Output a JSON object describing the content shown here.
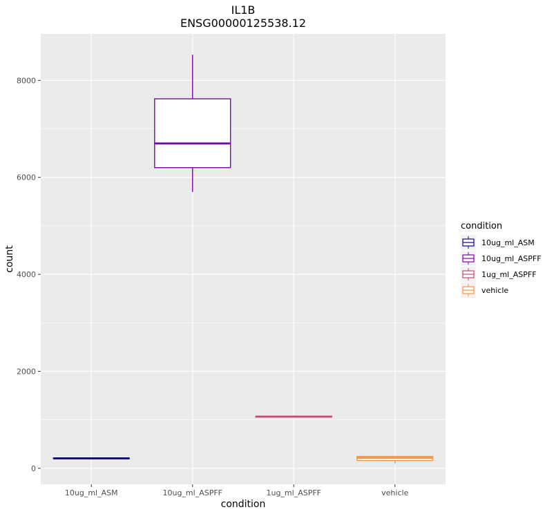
{
  "chart_data": {
    "type": "box",
    "title": "IL1B",
    "subtitle": "ENSG00000125538.12",
    "xlabel": "condition",
    "ylabel": "count",
    "ylim": [
      -330,
      8960
    ],
    "yticks": [
      0,
      2000,
      4000,
      6000,
      8000
    ],
    "grid": true,
    "legend": {
      "title": "condition",
      "placement": "right"
    },
    "categories": [
      "10ug_ml_ASM",
      "10ug_ml_ASPFF",
      "1ug_ml_ASPFF",
      "vehicle"
    ],
    "boxes": [
      {
        "name": "10ug_ml_ASM",
        "min": 195,
        "q1": 200,
        "median": 205,
        "q3": 210,
        "max": 215,
        "color": "#0d0887"
      },
      {
        "name": "10ug_ml_ASPFF",
        "min": 5700,
        "q1": 6200,
        "median": 6700,
        "q3": 7620,
        "max": 8530,
        "color": "#7e03a8"
      },
      {
        "name": "1ug_ml_ASPFF",
        "min": 1050,
        "q1": 1055,
        "median": 1065,
        "q3": 1075,
        "max": 1085,
        "color": "#cc4778"
      },
      {
        "name": "vehicle",
        "min": 100,
        "q1": 160,
        "median": 215,
        "q3": 245,
        "max": 250,
        "color": "#f89540"
      }
    ]
  }
}
